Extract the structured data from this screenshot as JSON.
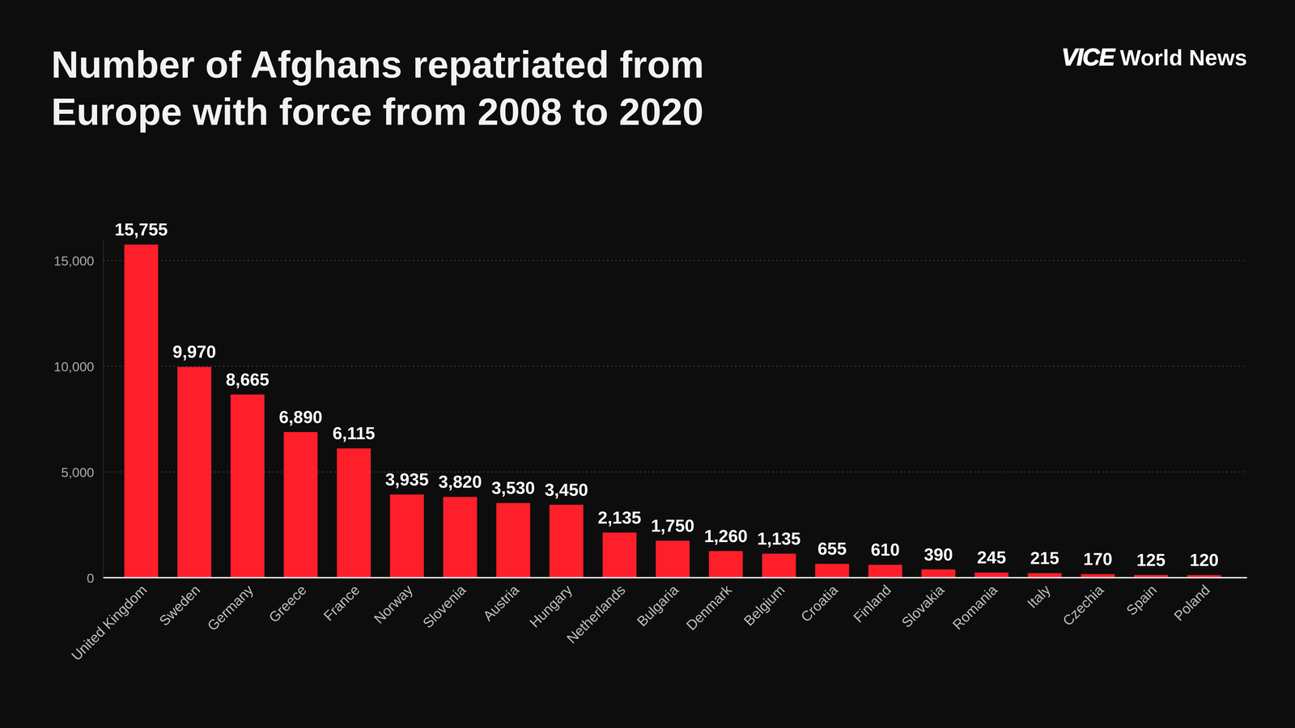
{
  "chart_data": {
    "type": "bar",
    "title": "Number of Afghans repatriated from Europe with force from 2008 to 2020",
    "source": "VICE World News",
    "categories": [
      "United Kingdom",
      "Sweden",
      "Germany",
      "Greece",
      "France",
      "Norway",
      "Slovenia",
      "Austria",
      "Hungary",
      "Netherlands",
      "Bulgaria",
      "Denmark",
      "Belgium",
      "Croatia",
      "Finland",
      "Slovakia",
      "Romania",
      "Italy",
      "Czechia",
      "Spain",
      "Poland"
    ],
    "values": [
      15755,
      9970,
      8665,
      6890,
      6115,
      3935,
      3820,
      3530,
      3450,
      2135,
      1750,
      1260,
      1135,
      655,
      610,
      390,
      245,
      215,
      170,
      125,
      120
    ],
    "value_labels": [
      "15,755",
      "9,970",
      "8,665",
      "6,890",
      "6,115",
      "3,935",
      "3,820",
      "3,530",
      "3,450",
      "2,135",
      "1,750",
      "1,260",
      "1,135",
      "655",
      "610",
      "390",
      "245",
      "215",
      "170",
      "125",
      "120"
    ],
    "color": "#ff1f2b",
    "ylim": [
      0,
      16000
    ],
    "yticks": [
      0,
      {
        "value": 5000,
        "label": "5,000"
      },
      {
        "value": 10000,
        "label": "10,000"
      },
      {
        "value": 15000,
        "label": "15,000"
      }
    ],
    "grid": true,
    "data_labels": true
  }
}
